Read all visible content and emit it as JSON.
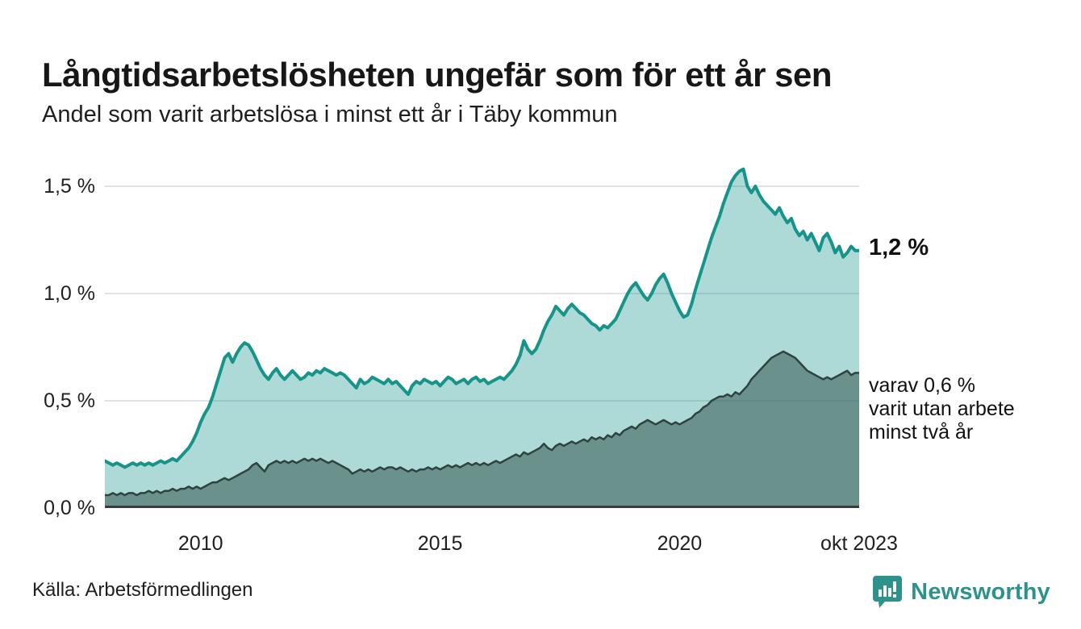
{
  "header": {
    "title": "Långtidsarbetslösheten ungefär som för ett år sen",
    "subtitle": "Andel som varit arbetslösa i minst ett år i Täby kommun"
  },
  "footer": {
    "source": "Källa: Arbetsförmedlingen",
    "brand": "Newsworthy"
  },
  "colors": {
    "accent_teal": "#17948a",
    "light_fill": "rgba(20,146,137,0.35)",
    "dark_line": "#2e433f",
    "dark_fill": "rgba(42,73,68,0.5)",
    "gridline": "#dfe3e8",
    "axis": "#3a3a3a",
    "brand_teal": "#2e928c"
  },
  "chart_data": {
    "type": "area",
    "title": "Långtidsarbetslösheten ungefär som för ett år sen",
    "subtitle": "Andel som varit arbetslösa i minst ett år i Täby kommun",
    "x_unit": "month",
    "x_range": [
      2008.0,
      2023.75
    ],
    "ylim": [
      0,
      1.654
    ],
    "grid": true,
    "y_ticks": [
      {
        "label": "0,0 %",
        "value": 0.0
      },
      {
        "label": "0,5 %",
        "value": 0.5
      },
      {
        "label": "1,0 %",
        "value": 1.0
      },
      {
        "label": "1,5 %",
        "value": 1.5
      }
    ],
    "x_ticks": [
      {
        "label": "2010",
        "year": 2010,
        "align": "middle"
      },
      {
        "label": "2015",
        "year": 2015,
        "align": "middle"
      },
      {
        "label": "2020",
        "year": 2020,
        "align": "middle"
      },
      {
        "label": "okt 2023",
        "year": 2023.75,
        "align": "end"
      }
    ],
    "series": [
      {
        "name": "Arbetslösa minst ett år",
        "line_color": "#17948a",
        "fill_color": "rgba(20,146,137,0.35)",
        "line_width": 4,
        "values": [
          0.22,
          0.21,
          0.2,
          0.21,
          0.2,
          0.19,
          0.2,
          0.21,
          0.2,
          0.21,
          0.2,
          0.21,
          0.2,
          0.21,
          0.22,
          0.21,
          0.22,
          0.23,
          0.22,
          0.24,
          0.26,
          0.28,
          0.31,
          0.35,
          0.4,
          0.44,
          0.47,
          0.52,
          0.58,
          0.64,
          0.7,
          0.72,
          0.68,
          0.72,
          0.75,
          0.77,
          0.76,
          0.73,
          0.69,
          0.65,
          0.62,
          0.6,
          0.63,
          0.65,
          0.62,
          0.6,
          0.62,
          0.64,
          0.62,
          0.6,
          0.61,
          0.63,
          0.62,
          0.64,
          0.63,
          0.65,
          0.64,
          0.63,
          0.62,
          0.63,
          0.62,
          0.6,
          0.58,
          0.56,
          0.6,
          0.58,
          0.59,
          0.61,
          0.6,
          0.59,
          0.58,
          0.6,
          0.58,
          0.59,
          0.57,
          0.55,
          0.53,
          0.57,
          0.59,
          0.58,
          0.6,
          0.59,
          0.58,
          0.59,
          0.57,
          0.59,
          0.61,
          0.6,
          0.58,
          0.59,
          0.6,
          0.58,
          0.6,
          0.61,
          0.59,
          0.6,
          0.58,
          0.59,
          0.6,
          0.61,
          0.6,
          0.62,
          0.64,
          0.67,
          0.71,
          0.78,
          0.74,
          0.72,
          0.74,
          0.78,
          0.83,
          0.87,
          0.9,
          0.94,
          0.92,
          0.9,
          0.93,
          0.95,
          0.93,
          0.91,
          0.9,
          0.88,
          0.86,
          0.85,
          0.83,
          0.85,
          0.84,
          0.86,
          0.88,
          0.92,
          0.96,
          1.0,
          1.03,
          1.05,
          1.02,
          0.99,
          0.97,
          1.0,
          1.04,
          1.07,
          1.09,
          1.05,
          1.0,
          0.96,
          0.92,
          0.89,
          0.9,
          0.95,
          1.02,
          1.08,
          1.14,
          1.2,
          1.26,
          1.31,
          1.36,
          1.42,
          1.47,
          1.52,
          1.55,
          1.57,
          1.58,
          1.5,
          1.47,
          1.5,
          1.46,
          1.43,
          1.41,
          1.39,
          1.37,
          1.4,
          1.36,
          1.33,
          1.35,
          1.3,
          1.27,
          1.29,
          1.25,
          1.28,
          1.24,
          1.2,
          1.26,
          1.28,
          1.24,
          1.19,
          1.22,
          1.17,
          1.19,
          1.22,
          1.2,
          1.2
        ]
      },
      {
        "name": "varav utan arbete minst två år",
        "line_color": "#2e433f",
        "fill_color": "rgba(42,73,68,0.5)",
        "line_width": 2.5,
        "values": [
          0.06,
          0.06,
          0.07,
          0.06,
          0.07,
          0.06,
          0.07,
          0.07,
          0.06,
          0.07,
          0.07,
          0.08,
          0.07,
          0.08,
          0.07,
          0.08,
          0.08,
          0.09,
          0.08,
          0.09,
          0.09,
          0.1,
          0.09,
          0.1,
          0.09,
          0.1,
          0.11,
          0.12,
          0.12,
          0.13,
          0.14,
          0.13,
          0.14,
          0.15,
          0.16,
          0.17,
          0.18,
          0.2,
          0.21,
          0.19,
          0.17,
          0.2,
          0.21,
          0.22,
          0.21,
          0.22,
          0.21,
          0.22,
          0.21,
          0.22,
          0.23,
          0.22,
          0.23,
          0.22,
          0.23,
          0.22,
          0.21,
          0.22,
          0.21,
          0.2,
          0.19,
          0.18,
          0.16,
          0.17,
          0.18,
          0.17,
          0.18,
          0.17,
          0.18,
          0.19,
          0.18,
          0.19,
          0.19,
          0.18,
          0.19,
          0.18,
          0.17,
          0.18,
          0.17,
          0.18,
          0.18,
          0.19,
          0.18,
          0.19,
          0.18,
          0.19,
          0.2,
          0.19,
          0.2,
          0.19,
          0.2,
          0.21,
          0.2,
          0.21,
          0.2,
          0.21,
          0.2,
          0.21,
          0.22,
          0.21,
          0.22,
          0.23,
          0.24,
          0.25,
          0.24,
          0.26,
          0.25,
          0.26,
          0.27,
          0.28,
          0.3,
          0.28,
          0.27,
          0.29,
          0.3,
          0.29,
          0.3,
          0.31,
          0.3,
          0.31,
          0.32,
          0.31,
          0.33,
          0.32,
          0.33,
          0.32,
          0.34,
          0.33,
          0.35,
          0.34,
          0.36,
          0.37,
          0.38,
          0.37,
          0.39,
          0.4,
          0.41,
          0.4,
          0.39,
          0.4,
          0.41,
          0.4,
          0.39,
          0.4,
          0.39,
          0.4,
          0.41,
          0.42,
          0.44,
          0.45,
          0.47,
          0.48,
          0.5,
          0.51,
          0.52,
          0.52,
          0.53,
          0.52,
          0.54,
          0.53,
          0.55,
          0.57,
          0.6,
          0.62,
          0.64,
          0.66,
          0.68,
          0.7,
          0.71,
          0.72,
          0.73,
          0.72,
          0.71,
          0.7,
          0.68,
          0.66,
          0.64,
          0.63,
          0.62,
          0.61,
          0.6,
          0.61,
          0.6,
          0.61,
          0.62,
          0.63,
          0.64,
          0.62,
          0.63,
          0.63
        ]
      }
    ],
    "annotations": [
      {
        "lines": [
          "1,2 %"
        ],
        "value": 1.2,
        "bold": true
      },
      {
        "lines": [
          "varav 0,6 %",
          "varit utan arbete",
          "minst två år"
        ],
        "value": 0.63,
        "bold": false
      }
    ]
  }
}
